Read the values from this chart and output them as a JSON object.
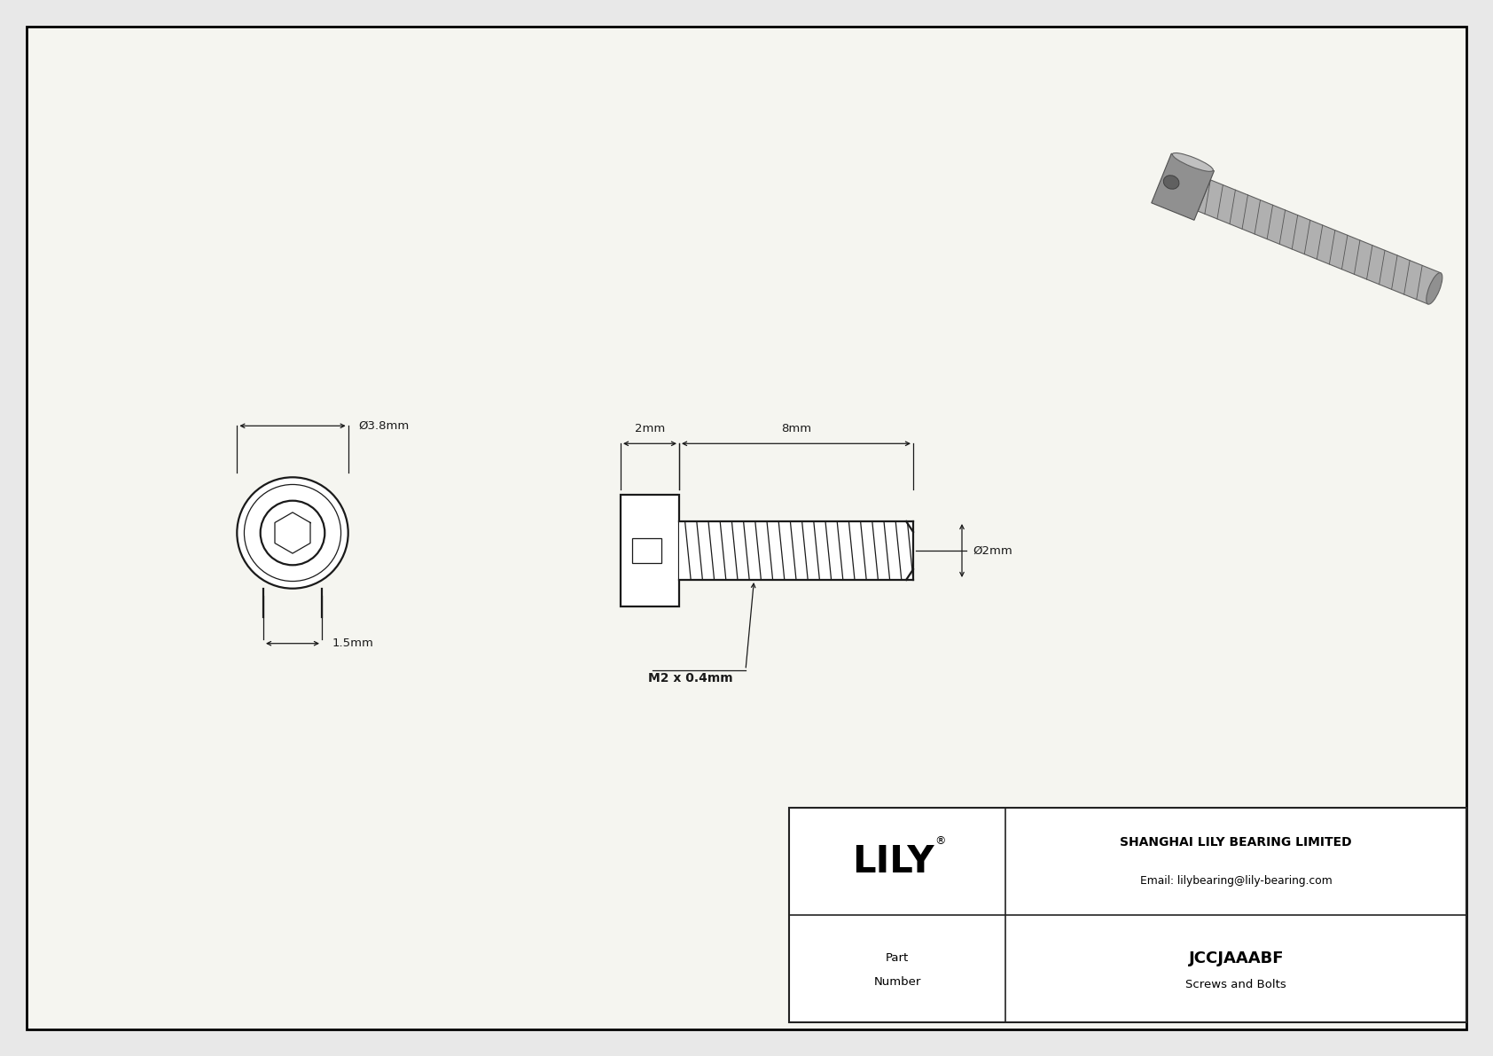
{
  "bg_color": "#e8e8e8",
  "drawing_bg": "#f5f5f0",
  "line_color": "#1a1a1a",
  "border_color": "#000000",
  "title_company": "SHANGHAI LILY BEARING LIMITED",
  "title_email": "Email: lilybearing@lily-bearing.com",
  "part_number": "JCCJAAABF",
  "part_category": "Screws and Bolts",
  "logo_text": "LILY",
  "dim_head_diameter": "Ø3.8mm",
  "dim_head_length": "1.5mm",
  "dim_body_length": "2mm",
  "dim_thread_length": "8mm",
  "dim_thread_diameter": "Ø2mm",
  "dim_thread_spec": "M2 x 0.4mm"
}
